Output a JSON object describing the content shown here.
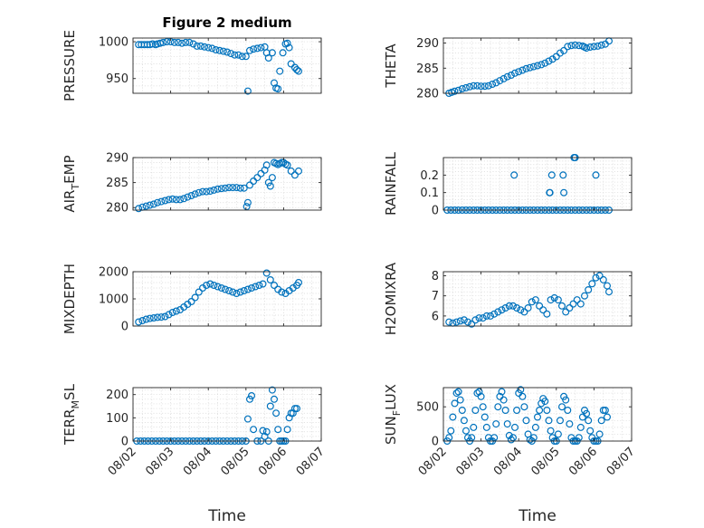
{
  "figure": {
    "title": "Figure 2 medium",
    "marker_color": "#0072BD",
    "axis_color": "#262626",
    "grid_color": "#d9d9d9"
  },
  "x_axis": {
    "label": "Time",
    "ticks": [
      "08/02",
      "08/03",
      "08/04",
      "08/05",
      "08/06",
      "08/07"
    ],
    "xlim": [
      0,
      5
    ]
  },
  "chart_data": [
    {
      "type": "scatter",
      "position": "row1-left",
      "ylabel": "PRESSURE",
      "ylim": [
        930,
        1005
      ],
      "yticks": [
        950,
        1000
      ],
      "grid": "on",
      "marker": "circle",
      "x": [
        0.15,
        0.22,
        0.3,
        0.38,
        0.45,
        0.52,
        0.6,
        0.65,
        0.72,
        0.8,
        0.9,
        1.0,
        1.1,
        1.2,
        1.3,
        1.4,
        1.5,
        1.6,
        1.7,
        1.8,
        1.9,
        2.0,
        2.1,
        2.2,
        2.3,
        2.4,
        2.5,
        2.6,
        2.7,
        2.8,
        2.9,
        3.0,
        3.05,
        3.1,
        3.2,
        3.3,
        3.4,
        3.5,
        3.55,
        3.6,
        3.7,
        3.75,
        3.8,
        3.85,
        3.9,
        3.98,
        4.05,
        4.1,
        4.15,
        4.2,
        4.3,
        4.35,
        4.4
      ],
      "y": [
        996,
        996,
        996,
        996,
        996,
        997,
        996,
        997,
        998,
        999,
        1000,
        1000,
        999,
        999,
        998,
        999,
        999,
        997,
        994,
        994,
        993,
        992,
        991,
        989,
        988,
        987,
        986,
        984,
        982,
        982,
        980,
        980,
        933,
        988,
        990,
        991,
        992,
        993,
        985,
        978,
        985,
        944,
        937,
        936,
        960,
        985,
        997,
        998,
        992,
        970,
        965,
        962,
        960
      ]
    },
    {
      "type": "scatter",
      "position": "row1-right",
      "ylabel": "THETA",
      "ylim": [
        280,
        291
      ],
      "yticks": [
        280,
        285,
        290
      ],
      "grid": "on",
      "marker": "circle",
      "x": [
        0.15,
        0.22,
        0.3,
        0.4,
        0.5,
        0.6,
        0.7,
        0.8,
        0.9,
        1.0,
        1.1,
        1.2,
        1.3,
        1.4,
        1.5,
        1.6,
        1.7,
        1.8,
        1.9,
        2.0,
        2.1,
        2.2,
        2.3,
        2.4,
        2.5,
        2.6,
        2.7,
        2.8,
        2.9,
        3.0,
        3.1,
        3.2,
        3.3,
        3.4,
        3.5,
        3.6,
        3.7,
        3.75,
        3.8,
        3.9,
        4.0,
        4.1,
        4.2,
        4.3,
        4.4
      ],
      "y": [
        280.0,
        280.2,
        280.4,
        280.6,
        280.9,
        281.1,
        281.3,
        281.5,
        281.5,
        281.4,
        281.4,
        281.5,
        281.8,
        282.1,
        282.5,
        282.9,
        283.3,
        283.6,
        284.0,
        284.3,
        284.6,
        284.9,
        285.1,
        285.3,
        285.5,
        285.7,
        286.0,
        286.4,
        286.8,
        287.3,
        288.0,
        288.5,
        289.3,
        289.5,
        289.6,
        289.5,
        289.4,
        289.2,
        289.0,
        289.2,
        289.3,
        289.4,
        289.6,
        289.8,
        290.4
      ]
    },
    {
      "type": "scatter",
      "position": "row2-left",
      "ylabel": "AIR_TEMP",
      "ylim": [
        279.5,
        290
      ],
      "yticks": [
        280,
        285,
        290
      ],
      "grid": "on",
      "marker": "circle",
      "x": [
        0.15,
        0.25,
        0.35,
        0.45,
        0.55,
        0.65,
        0.75,
        0.85,
        0.95,
        1.05,
        1.15,
        1.25,
        1.35,
        1.45,
        1.55,
        1.65,
        1.75,
        1.85,
        1.95,
        2.05,
        2.15,
        2.25,
        2.35,
        2.45,
        2.55,
        2.65,
        2.75,
        2.85,
        2.95,
        3.02,
        3.05,
        3.1,
        3.2,
        3.3,
        3.4,
        3.5,
        3.55,
        3.6,
        3.65,
        3.7,
        3.75,
        3.8,
        3.85,
        3.9,
        3.95,
        4.0,
        4.05,
        4.1,
        4.2,
        4.3,
        4.4
      ],
      "y": [
        279.8,
        280.1,
        280.3,
        280.5,
        280.7,
        281.0,
        281.2,
        281.4,
        281.6,
        281.7,
        281.6,
        281.6,
        281.8,
        282.1,
        282.4,
        282.7,
        283.0,
        283.2,
        283.2,
        283.3,
        283.5,
        283.7,
        283.8,
        283.9,
        284.0,
        284.0,
        284.0,
        283.9,
        283.9,
        280.2,
        281.0,
        284.5,
        285.3,
        286.0,
        286.8,
        287.5,
        288.5,
        285.0,
        284.3,
        286.0,
        289.0,
        288.8,
        288.6,
        288.8,
        289.0,
        289.0,
        288.7,
        288.5,
        287.3,
        286.5,
        287.3
      ]
    },
    {
      "type": "scatter",
      "position": "row2-right",
      "ylabel": "RAINFALL",
      "ylim": [
        0,
        0.3
      ],
      "yticks": [
        0,
        0.1,
        0.2
      ],
      "grid": "on",
      "marker": "circle",
      "x": [
        0.1,
        0.2,
        0.3,
        0.4,
        0.5,
        0.6,
        0.7,
        0.8,
        0.9,
        1.0,
        1.1,
        1.2,
        1.3,
        1.4,
        1.5,
        1.6,
        1.7,
        1.8,
        1.9,
        2.0,
        2.1,
        2.2,
        2.3,
        2.4,
        2.5,
        2.6,
        2.7,
        2.8,
        2.9,
        3.0,
        3.1,
        3.2,
        3.3,
        3.4,
        3.5,
        3.6,
        3.7,
        3.8,
        3.9,
        4.0,
        4.1,
        4.2,
        4.3,
        4.4,
        1.88,
        2.82,
        2.83,
        2.88,
        3.18,
        3.2,
        3.47,
        3.5,
        4.05
      ],
      "y": [
        0,
        0,
        0,
        0,
        0,
        0,
        0,
        0,
        0,
        0,
        0,
        0,
        0,
        0,
        0,
        0,
        0,
        0,
        0,
        0,
        0,
        0,
        0,
        0,
        0,
        0,
        0,
        0,
        0,
        0,
        0,
        0,
        0,
        0,
        0,
        0,
        0,
        0,
        0,
        0,
        0,
        0,
        0,
        0,
        0.2,
        0.1,
        0.1,
        0.2,
        0.2,
        0.1,
        0.3,
        0.3,
        0.2
      ]
    },
    {
      "type": "scatter",
      "position": "row3-left",
      "ylabel": "MIXDEPTH",
      "ylim": [
        0,
        2000
      ],
      "yticks": [
        0,
        1000,
        2000
      ],
      "grid": "on",
      "marker": "circle",
      "x": [
        0.15,
        0.25,
        0.35,
        0.45,
        0.55,
        0.65,
        0.75,
        0.85,
        0.95,
        1.05,
        1.15,
        1.25,
        1.35,
        1.45,
        1.55,
        1.65,
        1.75,
        1.85,
        1.95,
        2.05,
        2.15,
        2.25,
        2.35,
        2.45,
        2.55,
        2.65,
        2.75,
        2.85,
        2.95,
        3.05,
        3.15,
        3.25,
        3.35,
        3.45,
        3.55,
        3.65,
        3.75,
        3.85,
        3.95,
        4.05,
        4.15,
        4.25,
        4.35,
        4.4
      ],
      "y": [
        150,
        200,
        250,
        280,
        300,
        320,
        330,
        350,
        420,
        500,
        550,
        600,
        700,
        800,
        900,
        1050,
        1250,
        1400,
        1500,
        1550,
        1500,
        1450,
        1400,
        1350,
        1300,
        1250,
        1200,
        1250,
        1300,
        1350,
        1400,
        1450,
        1500,
        1550,
        1950,
        1700,
        1500,
        1350,
        1250,
        1200,
        1300,
        1400,
        1500,
        1600
      ]
    },
    {
      "type": "scatter",
      "position": "row3-right",
      "ylabel": "H2OMIXRA",
      "ylim": [
        5.5,
        8.2
      ],
      "yticks": [
        6,
        7,
        8
      ],
      "grid": "on",
      "marker": "circle",
      "x": [
        0.15,
        0.25,
        0.35,
        0.45,
        0.55,
        0.65,
        0.75,
        0.85,
        0.95,
        1.05,
        1.15,
        1.25,
        1.35,
        1.45,
        1.55,
        1.65,
        1.75,
        1.85,
        1.95,
        2.05,
        2.15,
        2.25,
        2.35,
        2.45,
        2.55,
        2.65,
        2.75,
        2.85,
        2.95,
        3.05,
        3.15,
        3.25,
        3.35,
        3.45,
        3.55,
        3.65,
        3.75,
        3.85,
        3.95,
        4.05,
        4.15,
        4.25,
        4.35,
        4.4
      ],
      "y": [
        5.7,
        5.65,
        5.7,
        5.75,
        5.8,
        5.7,
        5.6,
        5.8,
        5.9,
        5.9,
        6.0,
        6.0,
        6.1,
        6.2,
        6.3,
        6.4,
        6.5,
        6.5,
        6.4,
        6.3,
        6.2,
        6.4,
        6.7,
        6.8,
        6.5,
        6.3,
        6.1,
        6.8,
        6.9,
        6.8,
        6.5,
        6.2,
        6.4,
        6.6,
        6.8,
        6.6,
        7.0,
        7.3,
        7.6,
        7.9,
        8.0,
        7.8,
        7.5,
        7.2
      ]
    },
    {
      "type": "scatter",
      "position": "row4-left",
      "ylabel": "TERR_MSL",
      "ylim": [
        0,
        230
      ],
      "yticks": [
        0,
        100,
        200
      ],
      "grid": "on",
      "marker": "circle",
      "x": [
        0.1,
        0.2,
        0.3,
        0.4,
        0.5,
        0.6,
        0.7,
        0.8,
        0.9,
        1.0,
        1.1,
        1.2,
        1.3,
        1.4,
        1.5,
        1.6,
        1.7,
        1.8,
        1.9,
        2.0,
        2.1,
        2.2,
        2.3,
        2.4,
        2.5,
        2.6,
        2.7,
        2.8,
        2.9,
        3.0,
        3.05,
        3.1,
        3.15,
        3.2,
        3.3,
        3.4,
        3.45,
        3.5,
        3.55,
        3.6,
        3.65,
        3.7,
        3.75,
        3.8,
        3.85,
        3.9,
        3.95,
        4.0,
        4.05,
        4.1,
        4.15,
        4.2,
        4.25,
        4.3,
        4.35
      ],
      "y": [
        0,
        0,
        0,
        0,
        0,
        0,
        0,
        0,
        0,
        0,
        0,
        0,
        0,
        0,
        0,
        0,
        0,
        0,
        0,
        0,
        0,
        0,
        0,
        0,
        0,
        0,
        0,
        0,
        0,
        0,
        95,
        180,
        195,
        50,
        0,
        0,
        45,
        20,
        40,
        0,
        150,
        220,
        180,
        120,
        50,
        0,
        0,
        0,
        0,
        50,
        100,
        120,
        120,
        140,
        140
      ]
    },
    {
      "type": "scatter",
      "position": "row4-right",
      "ylabel": "SUN_FLUX",
      "ylim": [
        0,
        780
      ],
      "yticks": [
        0,
        500
      ],
      "grid": "on",
      "marker": "circle",
      "x": [
        0.1,
        0.15,
        0.2,
        0.25,
        0.3,
        0.35,
        0.4,
        0.45,
        0.5,
        0.55,
        0.6,
        0.65,
        0.7,
        0.75,
        0.8,
        0.85,
        0.9,
        0.95,
        1.0,
        1.05,
        1.1,
        1.15,
        1.2,
        1.25,
        1.3,
        1.35,
        1.4,
        1.45,
        1.5,
        1.55,
        1.6,
        1.65,
        1.7,
        1.75,
        1.8,
        1.85,
        1.9,
        1.95,
        2.0,
        2.05,
        2.1,
        2.15,
        2.2,
        2.25,
        2.3,
        2.35,
        2.4,
        2.45,
        2.5,
        2.55,
        2.6,
        2.65,
        2.7,
        2.75,
        2.8,
        2.85,
        2.9,
        2.95,
        3.0,
        3.05,
        3.1,
        3.15,
        3.2,
        3.25,
        3.3,
        3.35,
        3.4,
        3.45,
        3.5,
        3.55,
        3.6,
        3.65,
        3.7,
        3.75,
        3.8,
        3.85,
        3.9,
        3.95,
        4.0,
        4.05,
        4.1,
        4.15,
        4.2,
        4.25,
        4.3,
        4.35
      ],
      "y": [
        0,
        50,
        150,
        350,
        550,
        700,
        720,
        600,
        450,
        300,
        150,
        50,
        0,
        50,
        200,
        450,
        700,
        720,
        650,
        500,
        350,
        200,
        50,
        0,
        0,
        50,
        250,
        500,
        650,
        720,
        600,
        450,
        250,
        80,
        20,
        50,
        200,
        450,
        700,
        750,
        650,
        500,
        300,
        100,
        20,
        0,
        50,
        200,
        350,
        450,
        550,
        620,
        580,
        450,
        300,
        150,
        50,
        0,
        0,
        100,
        300,
        500,
        650,
        600,
        450,
        250,
        50,
        0,
        0,
        0,
        50,
        200,
        350,
        450,
        400,
        300,
        150,
        50,
        0,
        0,
        0,
        100,
        300,
        450,
        450,
        350
      ]
    }
  ]
}
